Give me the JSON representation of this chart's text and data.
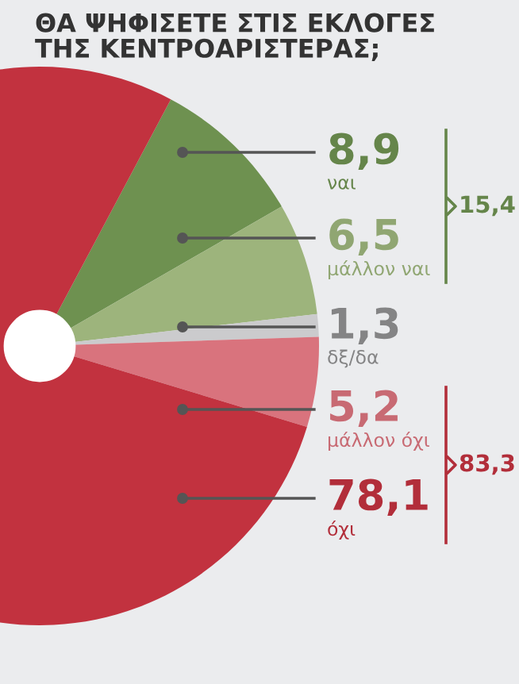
{
  "chart_data": {
    "type": "donut",
    "title": "ΘΑ ΨΗΦΙΣΕΤΕ ΣΤΙΣ ΕΚΛΟΓΕΣ\nΤΗΣ ΚΕΝΤΡΟΑΡΙΣΤΕΡΑΣ;",
    "categories": [
      "ναι",
      "μάλλον ναι",
      "δξ/δα",
      "μάλλον όχι",
      "όχι"
    ],
    "values": [
      8.9,
      6.5,
      1.3,
      5.2,
      78.1
    ],
    "colors": [
      "#6e9150",
      "#9db47c",
      "#cbcbcd",
      "#d9737d",
      "#c2323f"
    ],
    "value_labels": [
      "8,9",
      "6,5",
      "1,3",
      "5,2",
      "78,1"
    ],
    "annotations": [
      "15,4",
      "83,3"
    ],
    "legend": false
  }
}
